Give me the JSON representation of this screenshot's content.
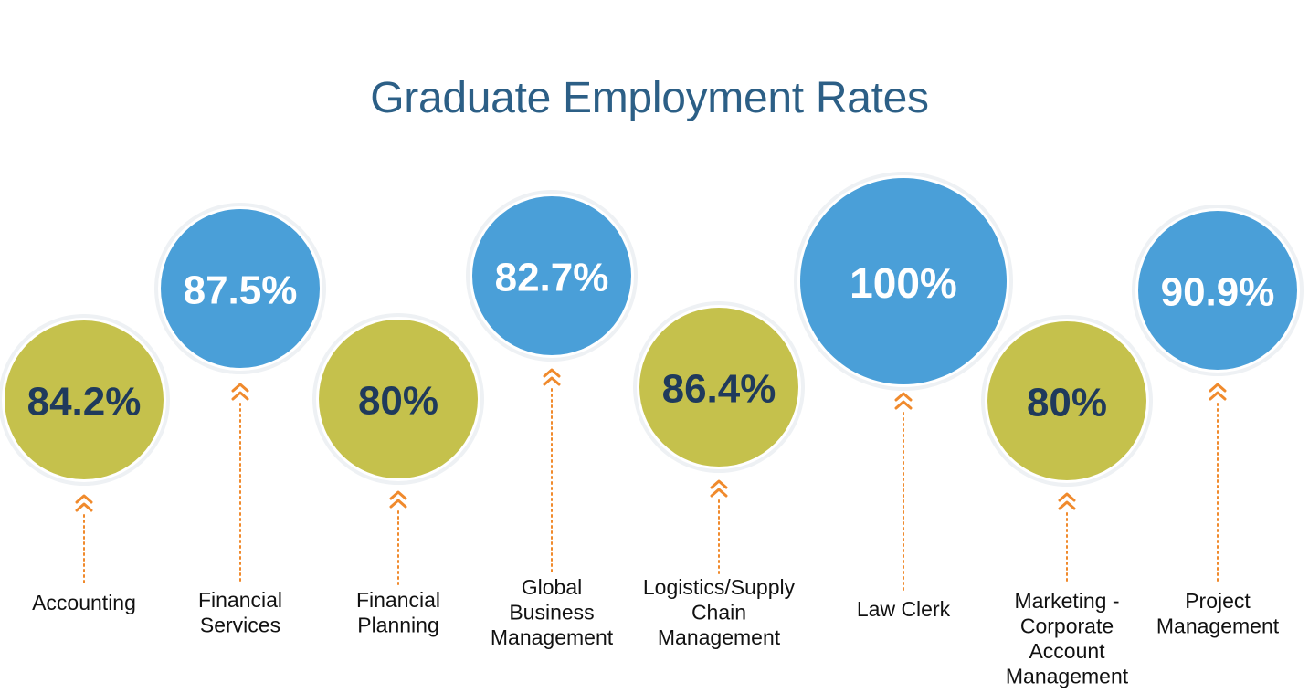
{
  "colors": {
    "title": "#2c5f86",
    "blue_circle": "#4a9fd8",
    "olive_circle": "#c5c14c",
    "ring": "#eef1f4",
    "text_on_blue": "#ffffff",
    "text_on_olive": "#1f3a5c",
    "connector": "#f08a2c",
    "label": "#111111"
  },
  "chart_data": {
    "type": "bubble",
    "title": "Graduate Employment Rates",
    "unit": "%",
    "items": [
      {
        "category": [
          "Accounting"
        ],
        "value": 84.2,
        "value_label": "84.2%",
        "color": "olive"
      },
      {
        "category": [
          "Financial",
          "Services"
        ],
        "value": 87.5,
        "value_label": "87.5%",
        "color": "blue"
      },
      {
        "category": [
          "Financial",
          "Planning"
        ],
        "value": 80,
        "value_label": "80%",
        "color": "olive"
      },
      {
        "category": [
          "Global",
          "Business",
          "Management"
        ],
        "value": 82.7,
        "value_label": "82.7%",
        "color": "blue"
      },
      {
        "category": [
          "Logistics/Supply",
          "Chain",
          "Management"
        ],
        "value": 86.4,
        "value_label": "86.4%",
        "color": "olive"
      },
      {
        "category": [
          "Law Clerk"
        ],
        "value": 100,
        "value_label": "100%",
        "color": "blue"
      },
      {
        "category": [
          "Marketing -",
          "Corporate",
          "Account",
          "Management"
        ],
        "value": 80,
        "value_label": "80%",
        "color": "olive"
      },
      {
        "category": [
          "Project",
          "Management"
        ],
        "value": 90.9,
        "value_label": "90.9%",
        "color": "blue"
      }
    ]
  }
}
